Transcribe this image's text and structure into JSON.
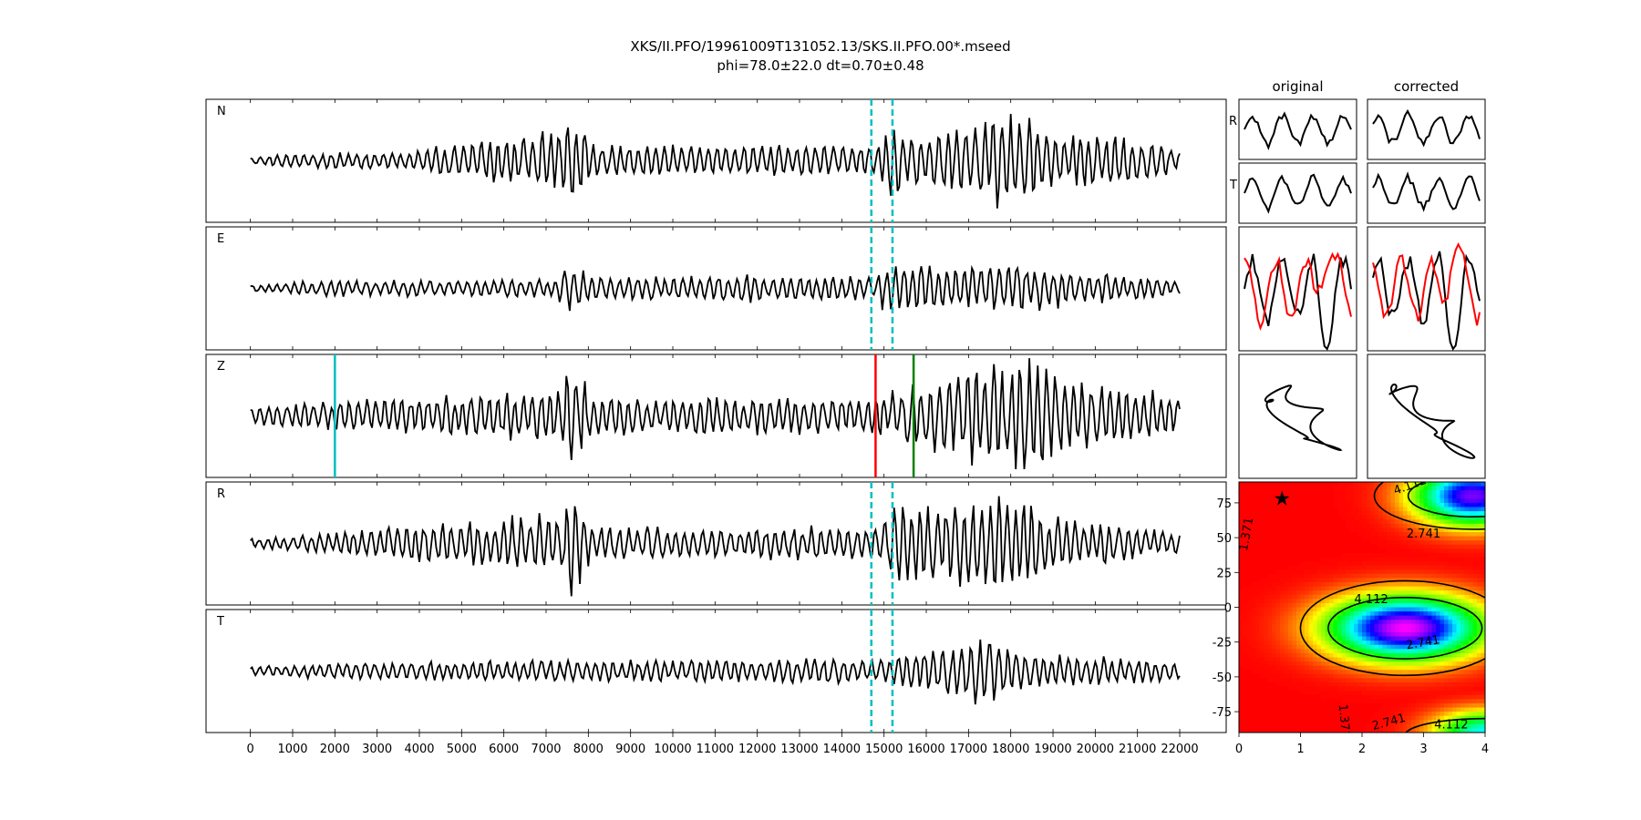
{
  "figure": {
    "title_line1": "XKS/II.PFO/19961009T131052.13/SKS.II.PFO.00*.mseed",
    "title_line2": "phi=78.0±22.0 dt=0.70±0.48"
  },
  "chart_data": [
    {
      "type": "line",
      "panel": "waveforms",
      "xlim": [
        -1050,
        23100
      ],
      "x_ticks": [
        0,
        1000,
        2000,
        3000,
        4000,
        5000,
        6000,
        7000,
        8000,
        9000,
        10000,
        11000,
        12000,
        13000,
        14000,
        15000,
        16000,
        17000,
        18000,
        19000,
        20000,
        21000,
        22000
      ],
      "trace_range": [
        0,
        22000
      ],
      "traces": [
        {
          "label": "N",
          "color": "#000000"
        },
        {
          "label": "E",
          "color": "#000000"
        },
        {
          "label": "Z",
          "color": "#000000"
        },
        {
          "label": "R",
          "color": "#000000"
        },
        {
          "label": "T",
          "color": "#000000"
        }
      ],
      "window_lines": {
        "values": [
          14700,
          15200
        ],
        "color": "#00bfbf",
        "style": "dashed",
        "traces": [
          "N",
          "E",
          "R",
          "T"
        ]
      },
      "markers": [
        {
          "x": 2000,
          "color": "#00bfbf",
          "trace": "Z"
        },
        {
          "x": 14800,
          "color": "#ff0000",
          "trace": "Z"
        },
        {
          "x": 15700,
          "color": "#008000",
          "trace": "Z"
        }
      ]
    },
    {
      "type": "line",
      "panel": "window-comparison",
      "columns": [
        "original",
        "corrected"
      ],
      "rows": [
        {
          "label": "R",
          "series": [
            {
              "color": "#000000"
            }
          ]
        },
        {
          "label": "T",
          "series": [
            {
              "color": "#000000"
            }
          ]
        },
        {
          "label": "",
          "series": [
            {
              "color": "#000000"
            },
            {
              "color": "#ff0000"
            }
          ]
        },
        {
          "label": "",
          "series": [
            {
              "color": "#000000"
            }
          ],
          "kind": "particle-motion"
        }
      ]
    },
    {
      "type": "heatmap",
      "panel": "misfit-grid",
      "xlim": [
        0,
        4
      ],
      "ylim": [
        -90,
        90
      ],
      "x_ticks": [
        0,
        1,
        2,
        3,
        4
      ],
      "y_ticks": [
        -75,
        -50,
        -25,
        0,
        25,
        50,
        75
      ],
      "contour_labels": [
        "1.371",
        "2.741",
        "4.112"
      ],
      "colormap": "rainbow",
      "best_fit": {
        "dt": 0.7,
        "phi": 78.0,
        "symbol": "★"
      }
    }
  ]
}
